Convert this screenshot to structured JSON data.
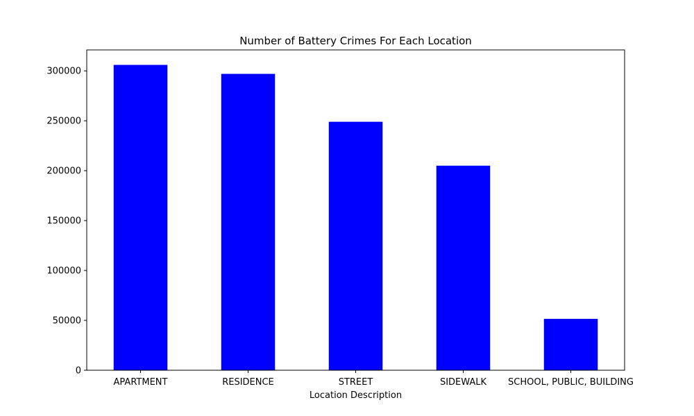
{
  "chart_data": {
    "type": "bar",
    "title": "Number of Battery Crimes For Each Location",
    "xlabel": "Location Description",
    "ylabel": "",
    "categories": [
      "APARTMENT",
      "RESIDENCE",
      "STREET",
      "SIDEWALK",
      "SCHOOL, PUBLIC, BUILDING"
    ],
    "values": [
      306000,
      297000,
      249000,
      205000,
      51500
    ],
    "ylim": [
      0,
      321000
    ],
    "yticks": [
      0,
      50000,
      100000,
      150000,
      200000,
      250000,
      300000
    ],
    "ytick_labels": [
      "0",
      "50000",
      "100000",
      "150000",
      "200000",
      "250000",
      "300000"
    ],
    "bar_color": "#0000ff",
    "grid": false,
    "legend": false
  }
}
